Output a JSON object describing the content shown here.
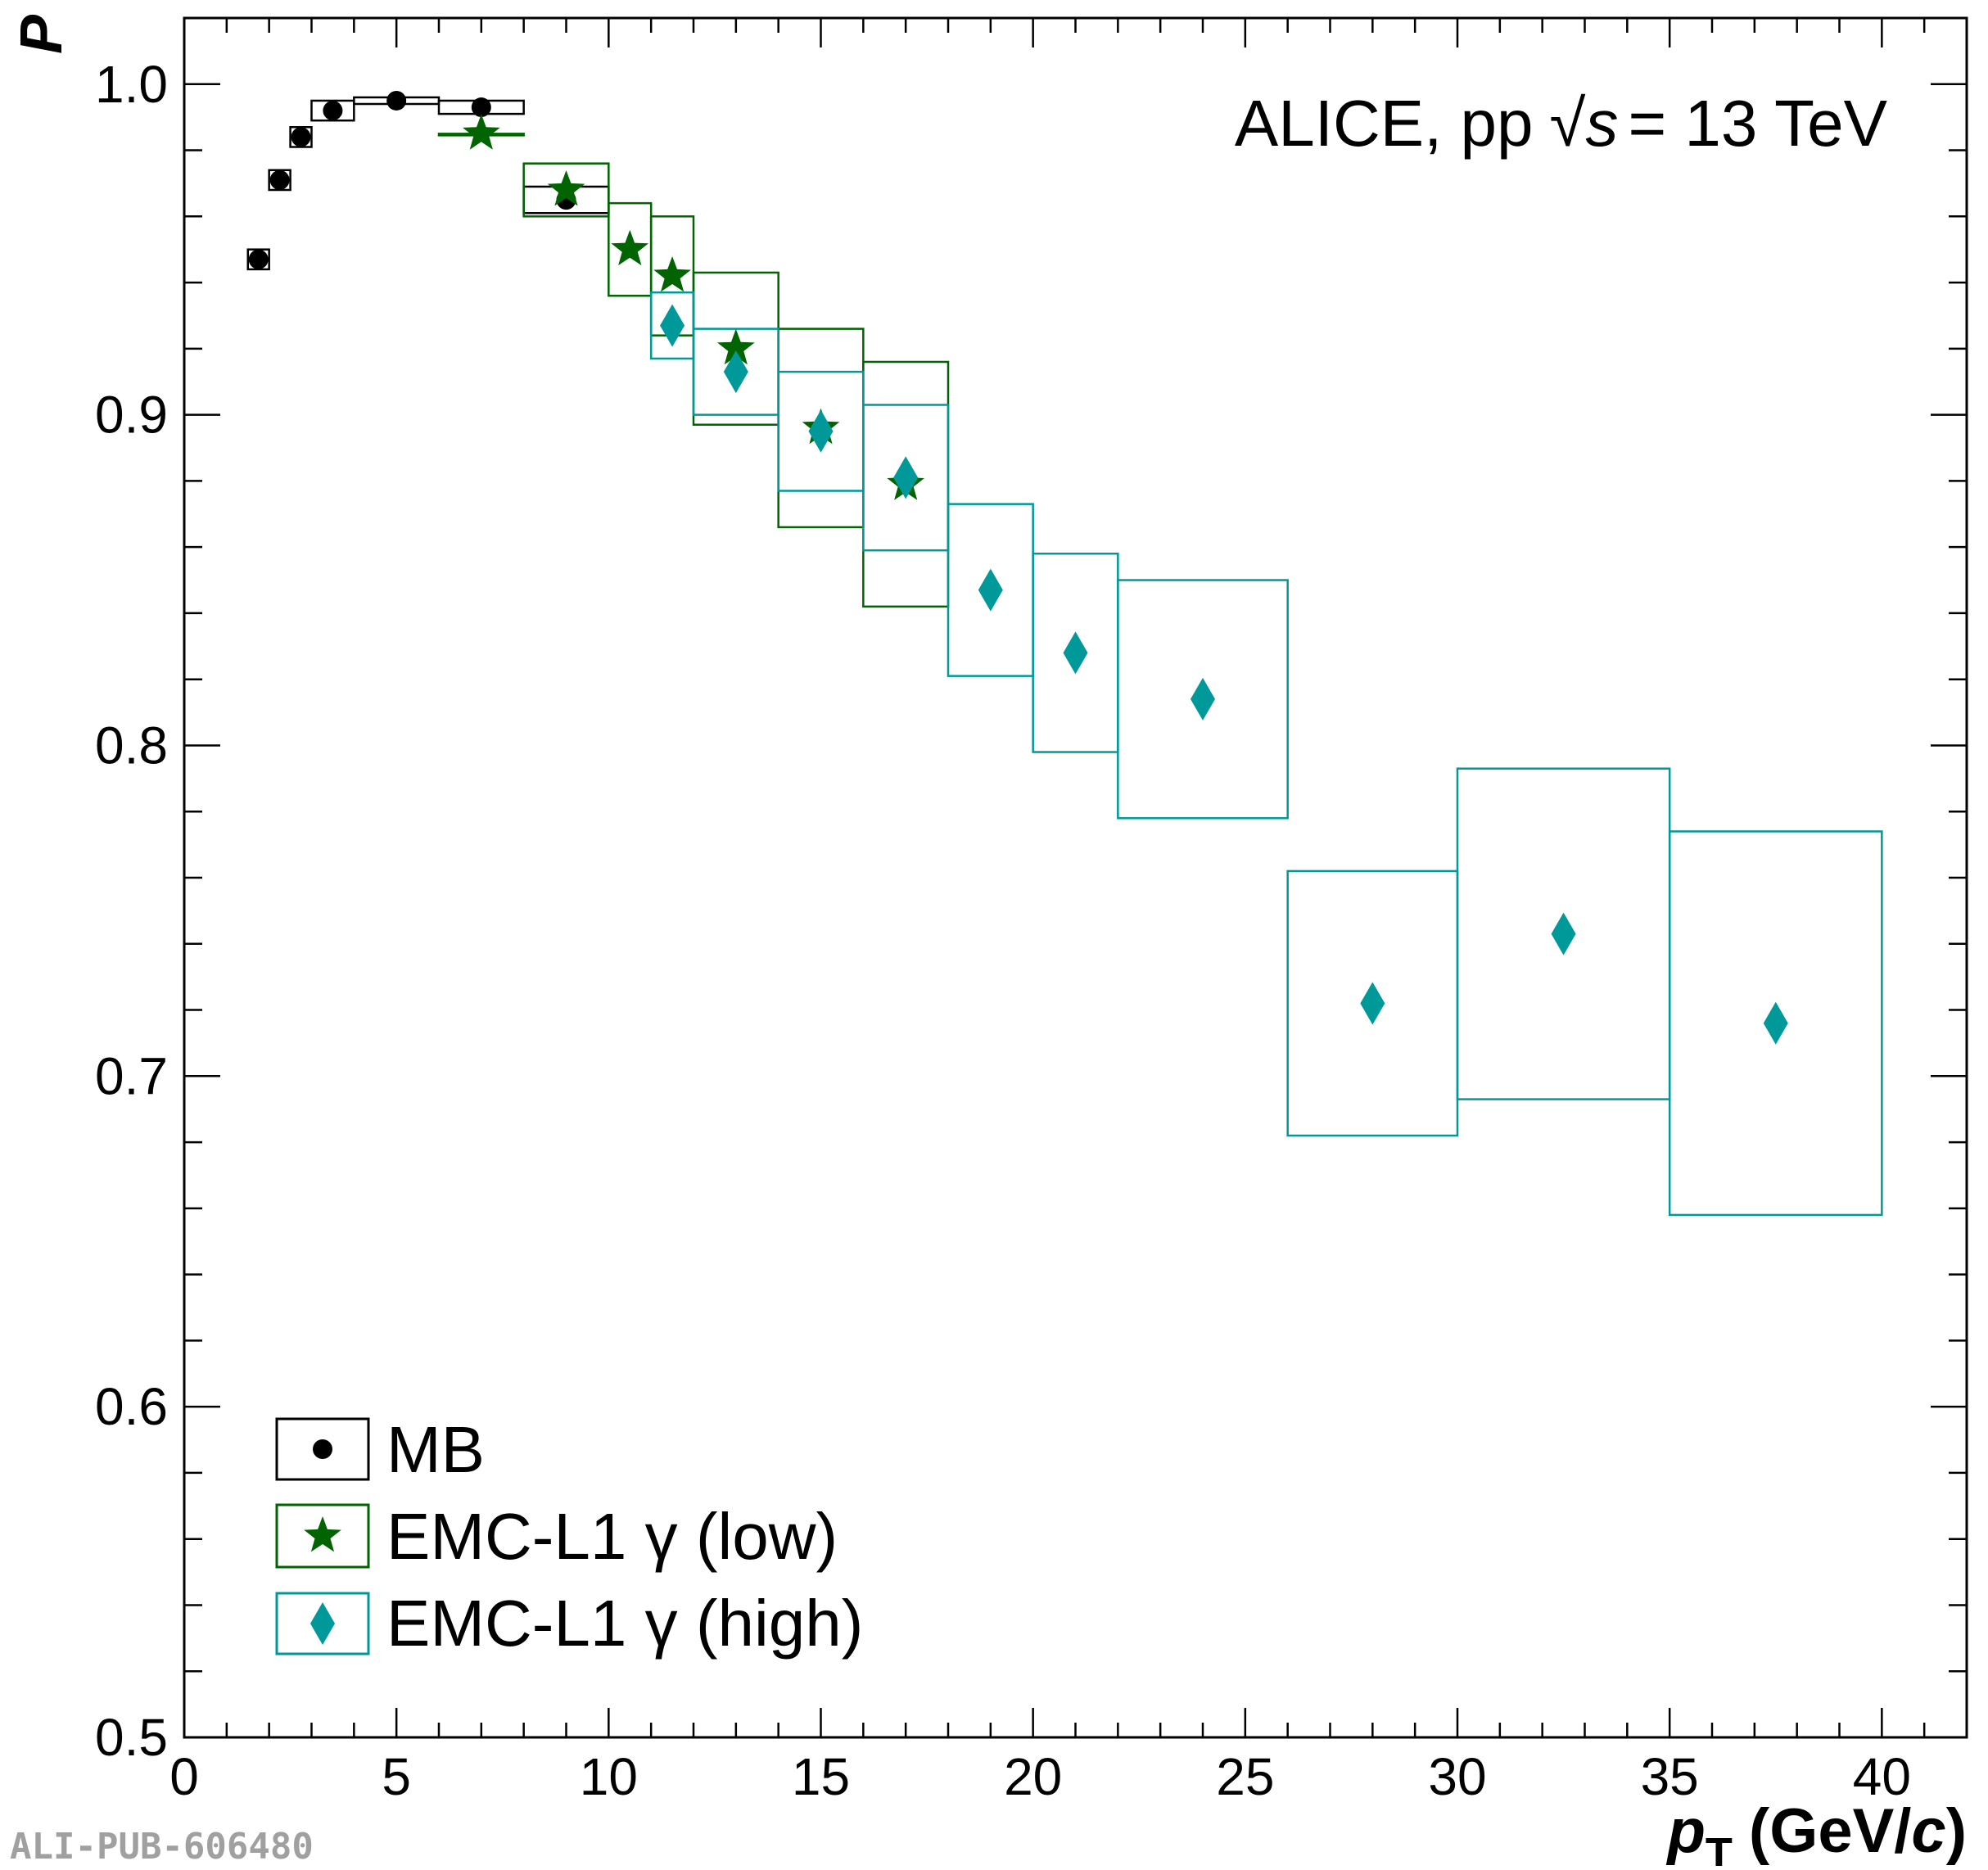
{
  "chart_data": {
    "type": "scatter",
    "title": "",
    "annotation": {
      "prefix": "ALICE, pp",
      "sqrt_symbol": "√",
      "variable": "s",
      "suffix": "= 13 TeV"
    },
    "xlabel": {
      "main": "p",
      "sub": "T",
      "units_prefix": "(GeV/",
      "units_var": "c",
      "units_suffix": ")"
    },
    "ylabel": "P",
    "xlim": [
      0,
      42
    ],
    "ylim": [
      0.5,
      1.02
    ],
    "xticks": [
      0,
      5,
      10,
      15,
      20,
      25,
      30,
      35,
      40
    ],
    "xtick_labels": [
      "0",
      "5",
      "10",
      "15",
      "20",
      "25",
      "30",
      "35",
      "40"
    ],
    "yticks": [
      0.5,
      0.6,
      0.7,
      0.8,
      0.9,
      1.0
    ],
    "ytick_labels": [
      "0.5",
      "0.6",
      "0.7",
      "0.8",
      "0.9",
      "1.0"
    ],
    "grid": false,
    "legend_position": "bottom-left",
    "series": [
      {
        "name": "MB",
        "marker": "circle",
        "color": "#000000",
        "points": [
          {
            "x": 1.75,
            "y": 0.947,
            "xlo": 1.5,
            "xhi": 2.0,
            "sys": 0.003
          },
          {
            "x": 2.25,
            "y": 0.971,
            "xlo": 2.0,
            "xhi": 2.5,
            "sys": 0.003
          },
          {
            "x": 2.75,
            "y": 0.984,
            "xlo": 2.5,
            "xhi": 3.0,
            "sys": 0.003
          },
          {
            "x": 3.5,
            "y": 0.992,
            "xlo": 3.0,
            "xhi": 4.0,
            "sys": 0.003
          },
          {
            "x": 5.0,
            "y": 0.995,
            "xlo": 4.0,
            "xhi": 6.0,
            "sys": 0.001
          },
          {
            "x": 7.0,
            "y": 0.993,
            "xlo": 6.0,
            "xhi": 8.0,
            "sys": 0.002
          },
          {
            "x": 9.0,
            "y": 0.965,
            "xlo": 8.0,
            "xhi": 10.0,
            "sys": 0.004
          }
        ]
      },
      {
        "name": "EMC-L1 γ (low)",
        "marker": "star",
        "color": "#006400",
        "points": [
          {
            "x": 7.0,
            "y": 0.985,
            "xlo": 6.0,
            "xhi": 8.0,
            "sys": 0.0
          },
          {
            "x": 9.0,
            "y": 0.968,
            "xlo": 8.0,
            "xhi": 10.0,
            "sys": 0.008
          },
          {
            "x": 10.5,
            "y": 0.95,
            "xlo": 10.0,
            "xhi": 11.0,
            "sys": 0.014
          },
          {
            "x": 11.5,
            "y": 0.942,
            "xlo": 11.0,
            "xhi": 12.0,
            "sys": 0.018
          },
          {
            "x": 13.0,
            "y": 0.92,
            "xlo": 12.0,
            "xhi": 14.0,
            "sys": 0.023
          },
          {
            "x": 15.0,
            "y": 0.896,
            "xlo": 14.0,
            "xhi": 16.0,
            "sys": 0.03
          },
          {
            "x": 17.0,
            "y": 0.879,
            "xlo": 16.0,
            "xhi": 18.0,
            "sys": 0.037
          }
        ]
      },
      {
        "name": "EMC-L1 γ (high)",
        "marker": "diamond",
        "color": "#009999",
        "points": [
          {
            "x": 11.5,
            "y": 0.927,
            "xlo": 11.0,
            "xhi": 12.0,
            "sys": 0.01
          },
          {
            "x": 13.0,
            "y": 0.913,
            "xlo": 12.0,
            "xhi": 14.0,
            "sys": 0.013
          },
          {
            "x": 15.0,
            "y": 0.895,
            "xlo": 14.0,
            "xhi": 16.0,
            "sys": 0.018
          },
          {
            "x": 17.0,
            "y": 0.881,
            "xlo": 16.0,
            "xhi": 18.0,
            "sys": 0.022
          },
          {
            "x": 19.0,
            "y": 0.847,
            "xlo": 18.0,
            "xhi": 20.0,
            "sys": 0.026
          },
          {
            "x": 21.0,
            "y": 0.828,
            "xlo": 20.0,
            "xhi": 22.0,
            "sys": 0.03
          },
          {
            "x": 24.0,
            "y": 0.814,
            "xlo": 22.0,
            "xhi": 26.0,
            "sys": 0.036
          },
          {
            "x": 28.0,
            "y": 0.722,
            "xlo": 26.0,
            "xhi": 30.0,
            "sys": 0.04
          },
          {
            "x": 32.5,
            "y": 0.743,
            "xlo": 30.0,
            "xhi": 35.0,
            "sys": 0.05
          },
          {
            "x": 37.5,
            "y": 0.716,
            "xlo": 35.0,
            "xhi": 40.0,
            "sys": 0.058
          }
        ]
      }
    ]
  },
  "footer": {
    "pub_id": "ALI-PUB-606480"
  }
}
